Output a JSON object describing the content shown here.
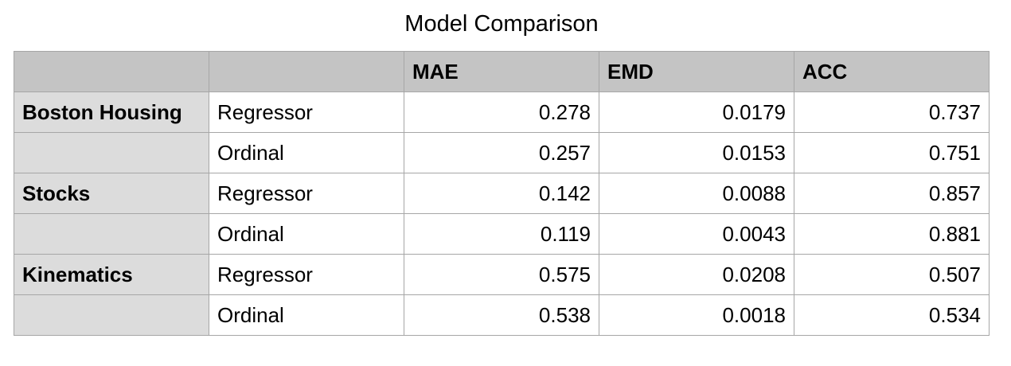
{
  "title": "Model Comparison",
  "table": {
    "headers": [
      "",
      "",
      "MAE",
      "EMD",
      "ACC"
    ],
    "rows": [
      {
        "group": "Boston Housing",
        "model": "Regressor",
        "mae": "0.278",
        "emd": "0.0179",
        "acc": "0.737"
      },
      {
        "group": "",
        "model": "Ordinal",
        "mae": "0.257",
        "emd": "0.0153",
        "acc": "0.751"
      },
      {
        "group": "Stocks",
        "model": "Regressor",
        "mae": "0.142",
        "emd": "0.0088",
        "acc": "0.857"
      },
      {
        "group": "",
        "model": "Ordinal",
        "mae": "0.119",
        "emd": "0.0043",
        "acc": "0.881"
      },
      {
        "group": "Kinematics",
        "model": "Regressor",
        "mae": "0.575",
        "emd": "0.0208",
        "acc": "0.507"
      },
      {
        "group": "",
        "model": "Ordinal",
        "mae": "0.538",
        "emd": "0.0018",
        "acc": "0.534"
      }
    ]
  }
}
